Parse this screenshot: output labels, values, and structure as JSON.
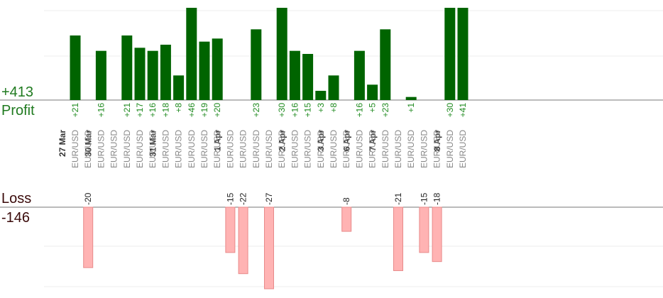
{
  "summary": {
    "profit_total": "+413",
    "profit_label": "Profit",
    "loss_label": "Loss",
    "loss_total": "-146"
  },
  "chart_data": {
    "type": "bar",
    "profit_color": "#006400",
    "loss_color": "#ffb3b3",
    "trade_axis_label": "EUR/USD",
    "profit_ylim": [
      0,
      30
    ],
    "loss_ylim": [
      0,
      27
    ],
    "profit_bars_clipped_above": 30,
    "trades": [
      {
        "symbol": "EUR/USD",
        "value": 21,
        "date": "27 Mar"
      },
      {
        "symbol": "EUR/USD",
        "value": -20
      },
      {
        "symbol": "EUR/USD",
        "value": 16,
        "date": "30 Mar"
      },
      {
        "symbol": "EUR/USD",
        "value": null
      },
      {
        "symbol": "EUR/USD",
        "value": 21
      },
      {
        "symbol": "EUR/USD",
        "value": 17
      },
      {
        "symbol": "EUR/USD",
        "value": 16
      },
      {
        "symbol": "EUR/USD",
        "value": 18,
        "date": "31 Mar"
      },
      {
        "symbol": "EUR/USD",
        "value": 8
      },
      {
        "symbol": "EUR/USD",
        "value": 46
      },
      {
        "symbol": "EUR/USD",
        "value": 19
      },
      {
        "symbol": "EUR/USD",
        "value": 20
      },
      {
        "symbol": "EUR/USD",
        "value": -15,
        "date": "1 Apr"
      },
      {
        "symbol": "EUR/USD",
        "value": -22
      },
      {
        "symbol": "EUR/USD",
        "value": 23
      },
      {
        "symbol": "EUR/USD",
        "value": -27
      },
      {
        "symbol": "EUR/USD",
        "value": 30
      },
      {
        "symbol": "EUR/USD",
        "value": 16,
        "date": "2 Apr"
      },
      {
        "symbol": "EUR/USD",
        "value": 15
      },
      {
        "symbol": "EUR/USD",
        "value": 3
      },
      {
        "symbol": "EUR/USD",
        "value": 8,
        "date": "3 Apr"
      },
      {
        "symbol": "EUR/USD",
        "value": -8
      },
      {
        "symbol": "EUR/USD",
        "value": 16,
        "date": "6 Apr"
      },
      {
        "symbol": "EUR/USD",
        "value": 5
      },
      {
        "symbol": "EUR/USD",
        "value": 23,
        "date": "7 Apr"
      },
      {
        "symbol": "EUR/USD",
        "value": -21
      },
      {
        "symbol": "EUR/USD",
        "value": 1
      },
      {
        "symbol": "EUR/USD",
        "value": -15
      },
      {
        "symbol": "EUR/USD",
        "value": -18
      },
      {
        "symbol": "EUR/USD",
        "value": 30,
        "date": "8 Apr"
      },
      {
        "symbol": "EUR/USD",
        "value": 41
      }
    ]
  }
}
